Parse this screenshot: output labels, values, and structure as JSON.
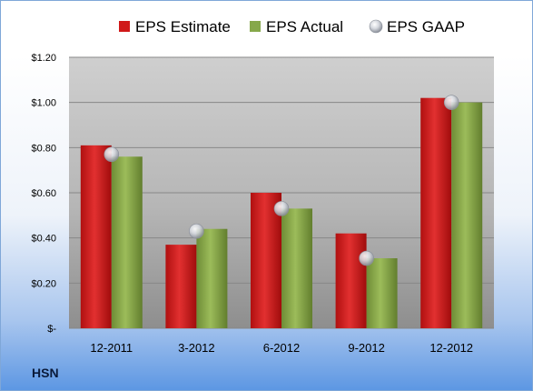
{
  "ticker": "HSN",
  "chart_data": {
    "type": "bar",
    "title": "",
    "xlabel": "",
    "ylabel": "",
    "categories": [
      "12-2011",
      "3-2012",
      "6-2012",
      "9-2012",
      "12-2012"
    ],
    "series": [
      {
        "name": "EPS Estimate",
        "kind": "bar",
        "color": "#d01818",
        "values": [
          0.81,
          0.37,
          0.6,
          0.42,
          1.02
        ]
      },
      {
        "name": "EPS Actual",
        "kind": "bar",
        "color": "#86a84a",
        "values": [
          0.76,
          0.44,
          0.53,
          0.31,
          1.0
        ]
      },
      {
        "name": "EPS GAAP",
        "kind": "marker",
        "color": "#c8ccd4",
        "values": [
          0.77,
          0.43,
          0.53,
          0.31,
          1.0
        ]
      }
    ],
    "ylim": [
      0,
      1.2
    ],
    "yticks": [
      0,
      0.2,
      0.4,
      0.6,
      0.8,
      1.0,
      1.2
    ],
    "ytick_labels": [
      "$-",
      "$0.20",
      "$0.40",
      "$0.60",
      "$0.80",
      "$1.00",
      "$1.20"
    ],
    "grid": true,
    "legend_position": "top"
  }
}
